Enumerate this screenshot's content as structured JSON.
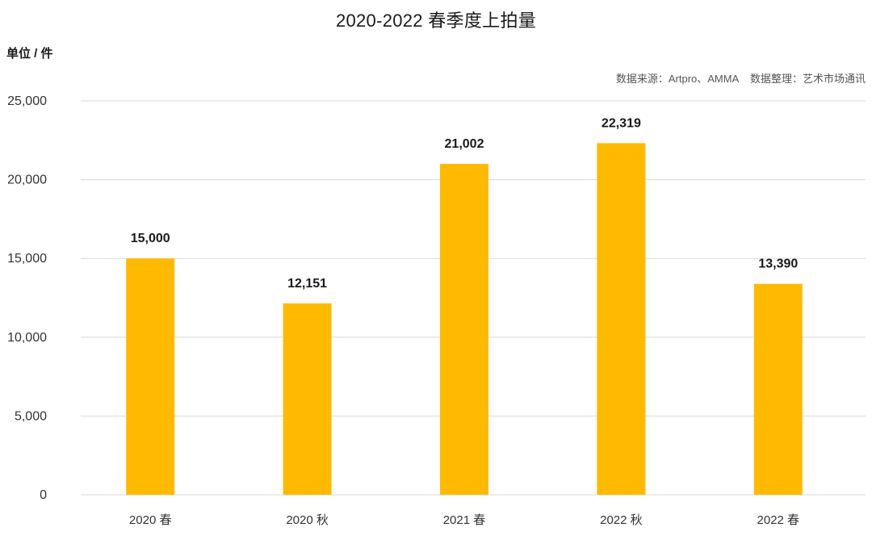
{
  "chart_data": {
    "type": "bar",
    "title": "2020-2022 春季度上拍量",
    "ylabel": "单位 / 件",
    "xlabel": "",
    "source_note": "数据来源：Artpro、AMMA    数据整理：艺术市场通讯",
    "categories": [
      "2020 春",
      "2020 秋",
      "2021 春",
      "2022 秋",
      "2022 春"
    ],
    "values": [
      15000,
      12151,
      21002,
      22319,
      13390
    ],
    "data_labels": [
      "15,000",
      "12,151",
      "21,002",
      "22,319",
      "13,390"
    ],
    "ylim": [
      0,
      25000
    ],
    "y_ticks": [
      0,
      5000,
      10000,
      15000,
      20000,
      25000
    ],
    "y_tick_labels": [
      "0",
      "5,000",
      "10,000",
      "15,000",
      "20,000",
      "25,000"
    ],
    "grid": true,
    "bar_color": "#FFBA00",
    "grid_color": "#d9d9d9"
  }
}
